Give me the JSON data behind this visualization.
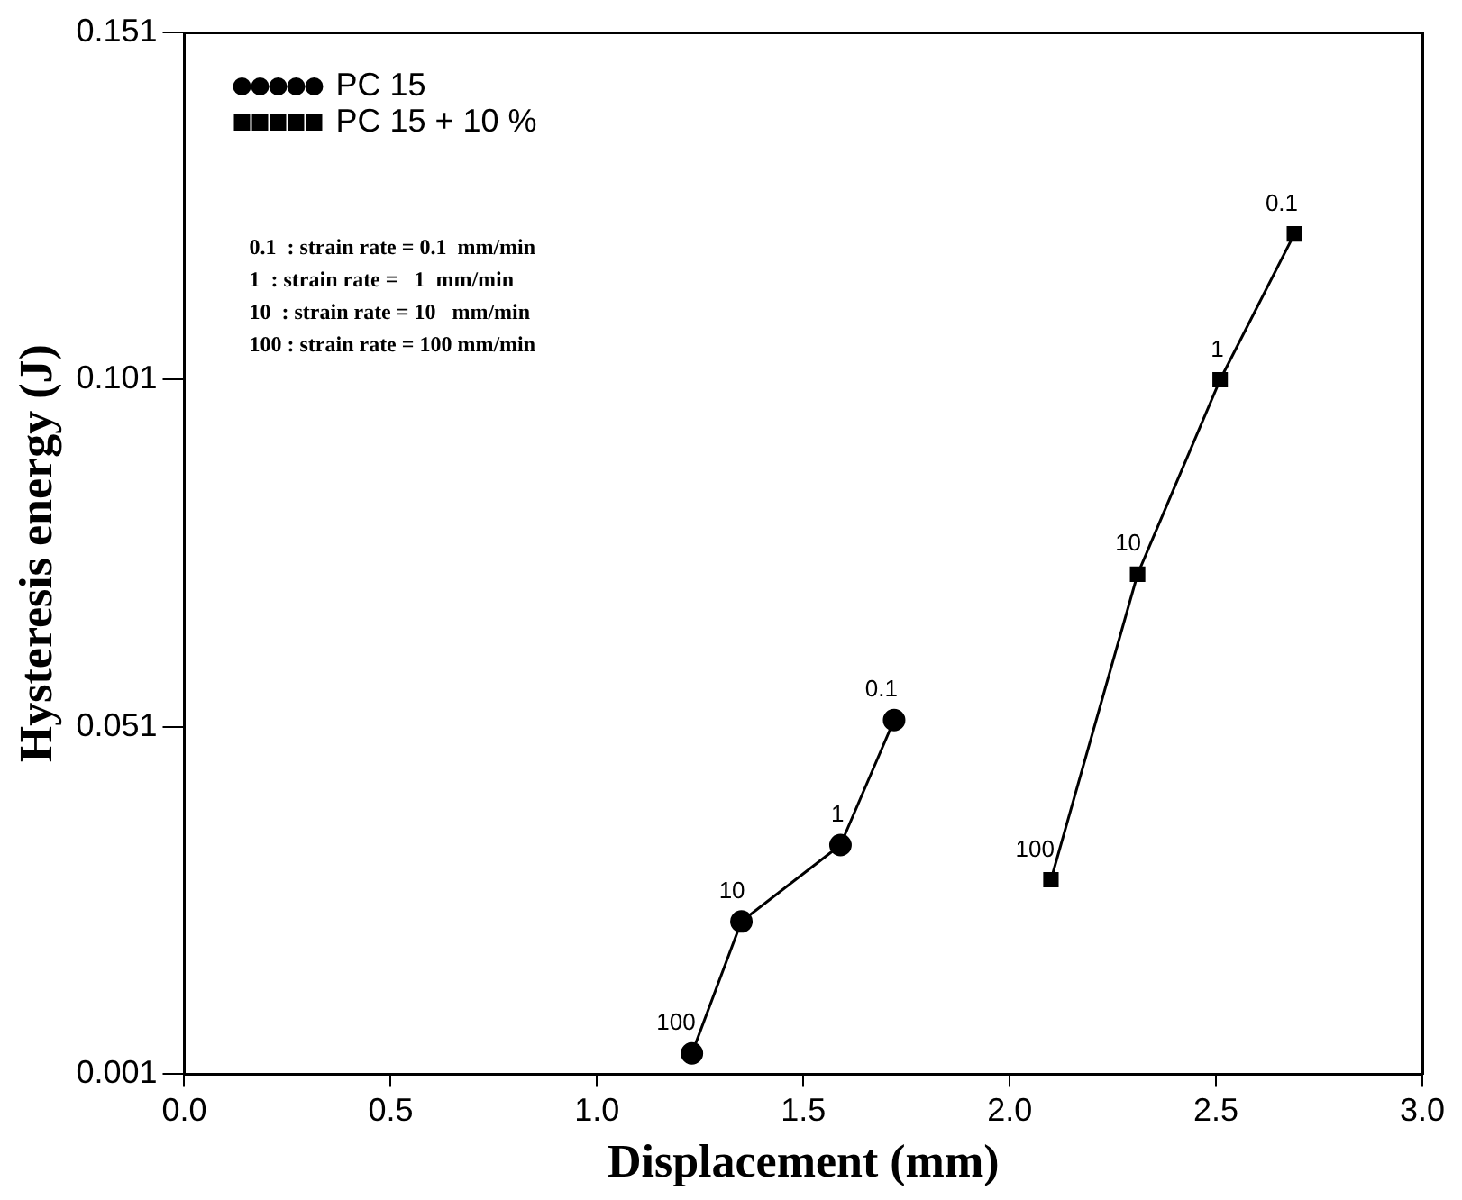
{
  "chart_data": {
    "type": "line",
    "xlabel": "Displacement (mm)",
    "ylabel": "Hysteresis energy (J)",
    "xlim": [
      0,
      3
    ],
    "xticks": [
      {
        "value": 0,
        "label": "0.0"
      },
      {
        "value": 0.5,
        "label": "0.5"
      },
      {
        "value": 1,
        "label": "1.0"
      },
      {
        "value": 1.5,
        "label": "1.5"
      },
      {
        "value": 2,
        "label": "2.0"
      },
      {
        "value": 2.5,
        "label": "2.5"
      },
      {
        "value": 3,
        "label": "3.0"
      }
    ],
    "ylim": [
      0.001,
      0.151
    ],
    "yticks": [
      0.001,
      0.051,
      0.101,
      0.151
    ],
    "grid": false,
    "legend": "top left",
    "line_style": "solid",
    "series": [
      {
        "name": "PC 15",
        "color": "#000000",
        "marker": "circle",
        "x": [
          1.23,
          1.35,
          1.59,
          1.72
        ],
        "values": [
          0.004,
          0.023,
          0.034,
          0.052
        ]
      },
      {
        "name": "PC 15 + 10 %",
        "color": "#000000",
        "marker": "square",
        "x": [
          2.1,
          2.31,
          2.51,
          2.69
        ],
        "values": [
          0.029,
          0.073,
          0.101,
          0.122
        ]
      }
    ],
    "annotations": [
      {
        "text": "100",
        "x": 1.23,
        "y": 0.004
      },
      {
        "text": "10",
        "x": 1.35,
        "y": 0.023
      },
      {
        "text": "1",
        "x": 1.59,
        "y": 0.034
      },
      {
        "text": "0.1",
        "x": 1.72,
        "y": 0.052
      },
      {
        "text": "100",
        "x": 2.1,
        "y": 0.029
      },
      {
        "text": "10",
        "x": 2.31,
        "y": 0.073
      },
      {
        "text": "1",
        "x": 2.51,
        "y": 0.101
      },
      {
        "text": "0.1",
        "x": 2.69,
        "y": 0.122
      },
      "0.1  : strain rate = 0.1  mm/min",
      "1  : strain rate =   1  mm/min",
      "10  : strain rate = 10   mm/min",
      "100 : strain rate = 100 mm/min"
    ]
  }
}
